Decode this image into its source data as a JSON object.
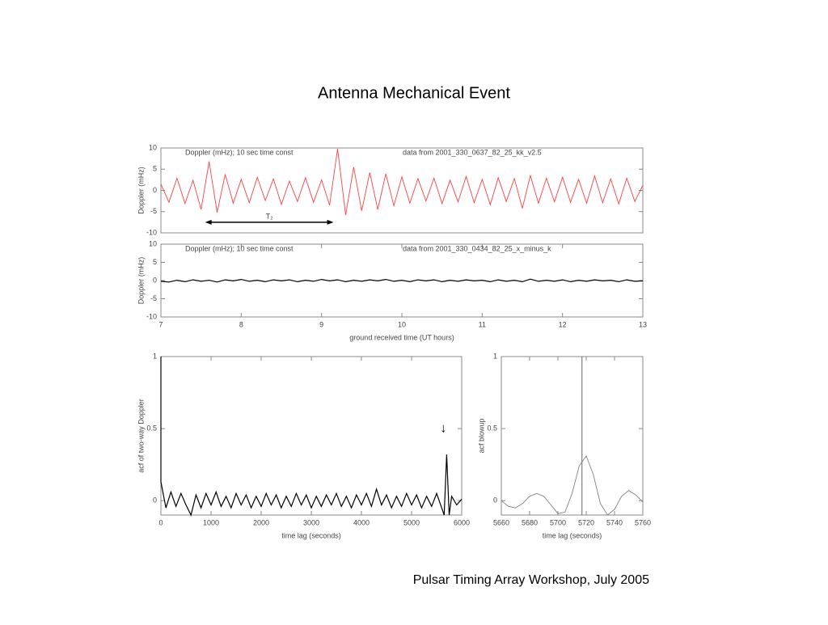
{
  "title": "Antenna Mechanical Event",
  "footer": "Pulsar Timing Array Workshop, July 2005",
  "chart_data": [
    {
      "type": "line",
      "color": "#ff4040",
      "y_label": "Doppler (mHz)",
      "annotations": [
        "Doppler (mHz); 10 sec time const",
        "data from 2001_330_0637_82_25_kk_v2.5"
      ],
      "arrow": {
        "text": "T₂",
        "x": [
          7.55,
          9.15
        ],
        "y": -7.5
      },
      "xlim": [
        7,
        13
      ],
      "ylim": [
        -10,
        10
      ],
      "yticks": [
        -10,
        -5,
        0,
        5,
        10
      ],
      "x": [
        7.0,
        7.1,
        7.2,
        7.3,
        7.4,
        7.5,
        7.6,
        7.7,
        7.8,
        7.9,
        8.0,
        8.1,
        8.2,
        8.3,
        8.4,
        8.5,
        8.6,
        8.7,
        8.8,
        8.9,
        9.0,
        9.1,
        9.2,
        9.3,
        9.4,
        9.5,
        9.6,
        9.7,
        9.8,
        9.9,
        10.0,
        10.1,
        10.2,
        10.3,
        10.4,
        10.5,
        10.6,
        10.7,
        10.8,
        10.9,
        11.0,
        11.1,
        11.2,
        11.3,
        11.4,
        11.5,
        11.6,
        11.7,
        11.8,
        11.9,
        12.0,
        12.1,
        12.2,
        12.3,
        12.4,
        12.5,
        12.6,
        12.7,
        12.8,
        12.9,
        13.0
      ],
      "values": [
        1.5,
        -2.8,
        2.9,
        -3.1,
        2.4,
        -4.5,
        6.8,
        -5.2,
        3.8,
        -3.0,
        2.6,
        -2.9,
        3.1,
        -2.4,
        2.7,
        -3.3,
        2.2,
        -2.6,
        3.0,
        -2.8,
        2.5,
        -3.5,
        9.8,
        -5.8,
        5.5,
        -4.8,
        4.2,
        -4.5,
        3.9,
        -3.6,
        3.2,
        -3.0,
        2.8,
        -2.5,
        2.9,
        -3.1,
        2.4,
        -2.7,
        3.3,
        -2.9,
        2.6,
        -3.4,
        3.0,
        -2.6,
        2.8,
        -4.2,
        3.5,
        -3.0,
        2.9,
        -2.7,
        3.1,
        -2.8,
        2.6,
        -3.0,
        3.4,
        -2.9,
        2.7,
        -3.2,
        2.9,
        -2.6,
        1.2
      ]
    },
    {
      "type": "line",
      "color": "#000000",
      "y_label": "Doppler (mHz)",
      "x_label": "ground received time (UT hours)",
      "annotations": [
        "Doppler (mHz); 10 sec time const",
        "data from 2001_330_0434_82_25_x_minus_k"
      ],
      "xlim": [
        7,
        13
      ],
      "ylim": [
        -10,
        10
      ],
      "yticks": [
        -10,
        -5,
        0,
        5,
        10
      ],
      "xticks": [
        7,
        8,
        9,
        10,
        11,
        12,
        13
      ],
      "x": [
        7.0,
        7.1,
        7.2,
        7.3,
        7.4,
        7.5,
        7.6,
        7.7,
        7.8,
        7.9,
        8.0,
        8.1,
        8.2,
        8.3,
        8.4,
        8.5,
        8.6,
        8.7,
        8.8,
        8.9,
        9.0,
        9.1,
        9.2,
        9.3,
        9.4,
        9.5,
        9.6,
        9.7,
        9.8,
        9.9,
        10.0,
        10.1,
        10.2,
        10.3,
        10.4,
        10.5,
        10.6,
        10.7,
        10.8,
        10.9,
        11.0,
        11.1,
        11.2,
        11.3,
        11.4,
        11.5,
        11.6,
        11.7,
        11.8,
        11.9,
        12.0,
        12.1,
        12.2,
        12.3,
        12.4,
        12.5,
        12.6,
        12.7,
        12.8,
        12.9,
        13.0
      ],
      "values": [
        -0.2,
        -0.4,
        0.1,
        -0.3,
        0.2,
        -0.2,
        0.1,
        -0.4,
        0.2,
        -0.1,
        0.3,
        -0.2,
        0.1,
        -0.3,
        0.2,
        -0.1,
        0.2,
        -0.3,
        0.1,
        -0.2,
        0.3,
        -0.1,
        0.2,
        -0.3,
        0.1,
        -0.2,
        0.2,
        -0.1,
        0.3,
        -0.2,
        0.1,
        -0.3,
        0.2,
        -0.1,
        0.2,
        -0.3,
        0.1,
        -0.2,
        0.2,
        -0.1,
        0.1,
        -0.3,
        0.2,
        -0.2,
        0.1,
        -0.3,
        0.4,
        -0.2,
        0.1,
        -0.2,
        0.2,
        -0.3,
        0.1,
        -0.2,
        0.2,
        -0.1,
        0.1,
        -0.3,
        0.2,
        -0.2,
        -0.1
      ]
    },
    {
      "type": "line",
      "color": "#000000",
      "y_label": "acf of two-way Doppler",
      "x_label": "time lag (seconds)",
      "marker": {
        "text": "↓",
        "x": 5700,
        "y": 0.5
      },
      "xlim": [
        0,
        6000
      ],
      "ylim": [
        -0.1,
        1
      ],
      "yticks": [
        0,
        0.5,
        1
      ],
      "xticks": [
        0,
        1000,
        2000,
        3000,
        4000,
        5000,
        6000
      ],
      "x": [
        0,
        0,
        100,
        200,
        300,
        400,
        500,
        600,
        700,
        800,
        900,
        1000,
        1100,
        1200,
        1300,
        1400,
        1500,
        1600,
        1700,
        1800,
        1900,
        2000,
        2100,
        2200,
        2300,
        2400,
        2500,
        2600,
        2700,
        2800,
        2900,
        3000,
        3100,
        3200,
        3300,
        3400,
        3500,
        3600,
        3700,
        3800,
        3900,
        4000,
        4100,
        4200,
        4300,
        4400,
        4500,
        4600,
        4700,
        4800,
        4900,
        5000,
        5100,
        5200,
        5300,
        5400,
        5500,
        5600,
        5650,
        5700,
        5750,
        5800,
        5900,
        6000
      ],
      "values": [
        1,
        0.13,
        -0.05,
        0.06,
        -0.04,
        0.05,
        -0.03,
        -0.1,
        0.04,
        -0.05,
        0.05,
        -0.03,
        0.06,
        -0.04,
        0.03,
        -0.05,
        0.05,
        -0.03,
        0.04,
        -0.05,
        0.03,
        -0.04,
        0.05,
        -0.03,
        0.04,
        -0.05,
        0.03,
        -0.04,
        0.05,
        -0.03,
        0.04,
        -0.05,
        0.03,
        -0.04,
        0.04,
        -0.03,
        0.05,
        -0.04,
        0.03,
        -0.05,
        0.04,
        -0.03,
        0.05,
        -0.04,
        0.08,
        -0.03,
        0.04,
        -0.05,
        0.03,
        -0.04,
        0.05,
        -0.03,
        0.04,
        -0.05,
        0.03,
        -0.04,
        0.05,
        -0.05,
        -0.1,
        0.32,
        -0.1,
        0.03,
        -0.03,
        0.01
      ]
    },
    {
      "type": "line",
      "color": "#808080",
      "y_label": "acf blowup",
      "x_label": "time lag (seconds)",
      "vline": 5717,
      "xlim": [
        5660,
        5760
      ],
      "ylim": [
        -0.1,
        1
      ],
      "yticks": [
        0,
        0.5,
        1
      ],
      "xticks": [
        5660,
        5680,
        5700,
        5720,
        5740,
        5760
      ],
      "x": [
        5660,
        5665,
        5670,
        5675,
        5680,
        5685,
        5690,
        5695,
        5700,
        5705,
        5710,
        5715,
        5720,
        5725,
        5730,
        5735,
        5740,
        5745,
        5750,
        5755,
        5760
      ],
      "values": [
        0.0,
        -0.04,
        -0.05,
        -0.02,
        0.03,
        0.05,
        0.03,
        -0.03,
        -0.09,
        -0.08,
        0.05,
        0.24,
        0.31,
        0.18,
        -0.02,
        -0.1,
        -0.06,
        0.03,
        0.07,
        0.04,
        -0.01
      ]
    }
  ]
}
